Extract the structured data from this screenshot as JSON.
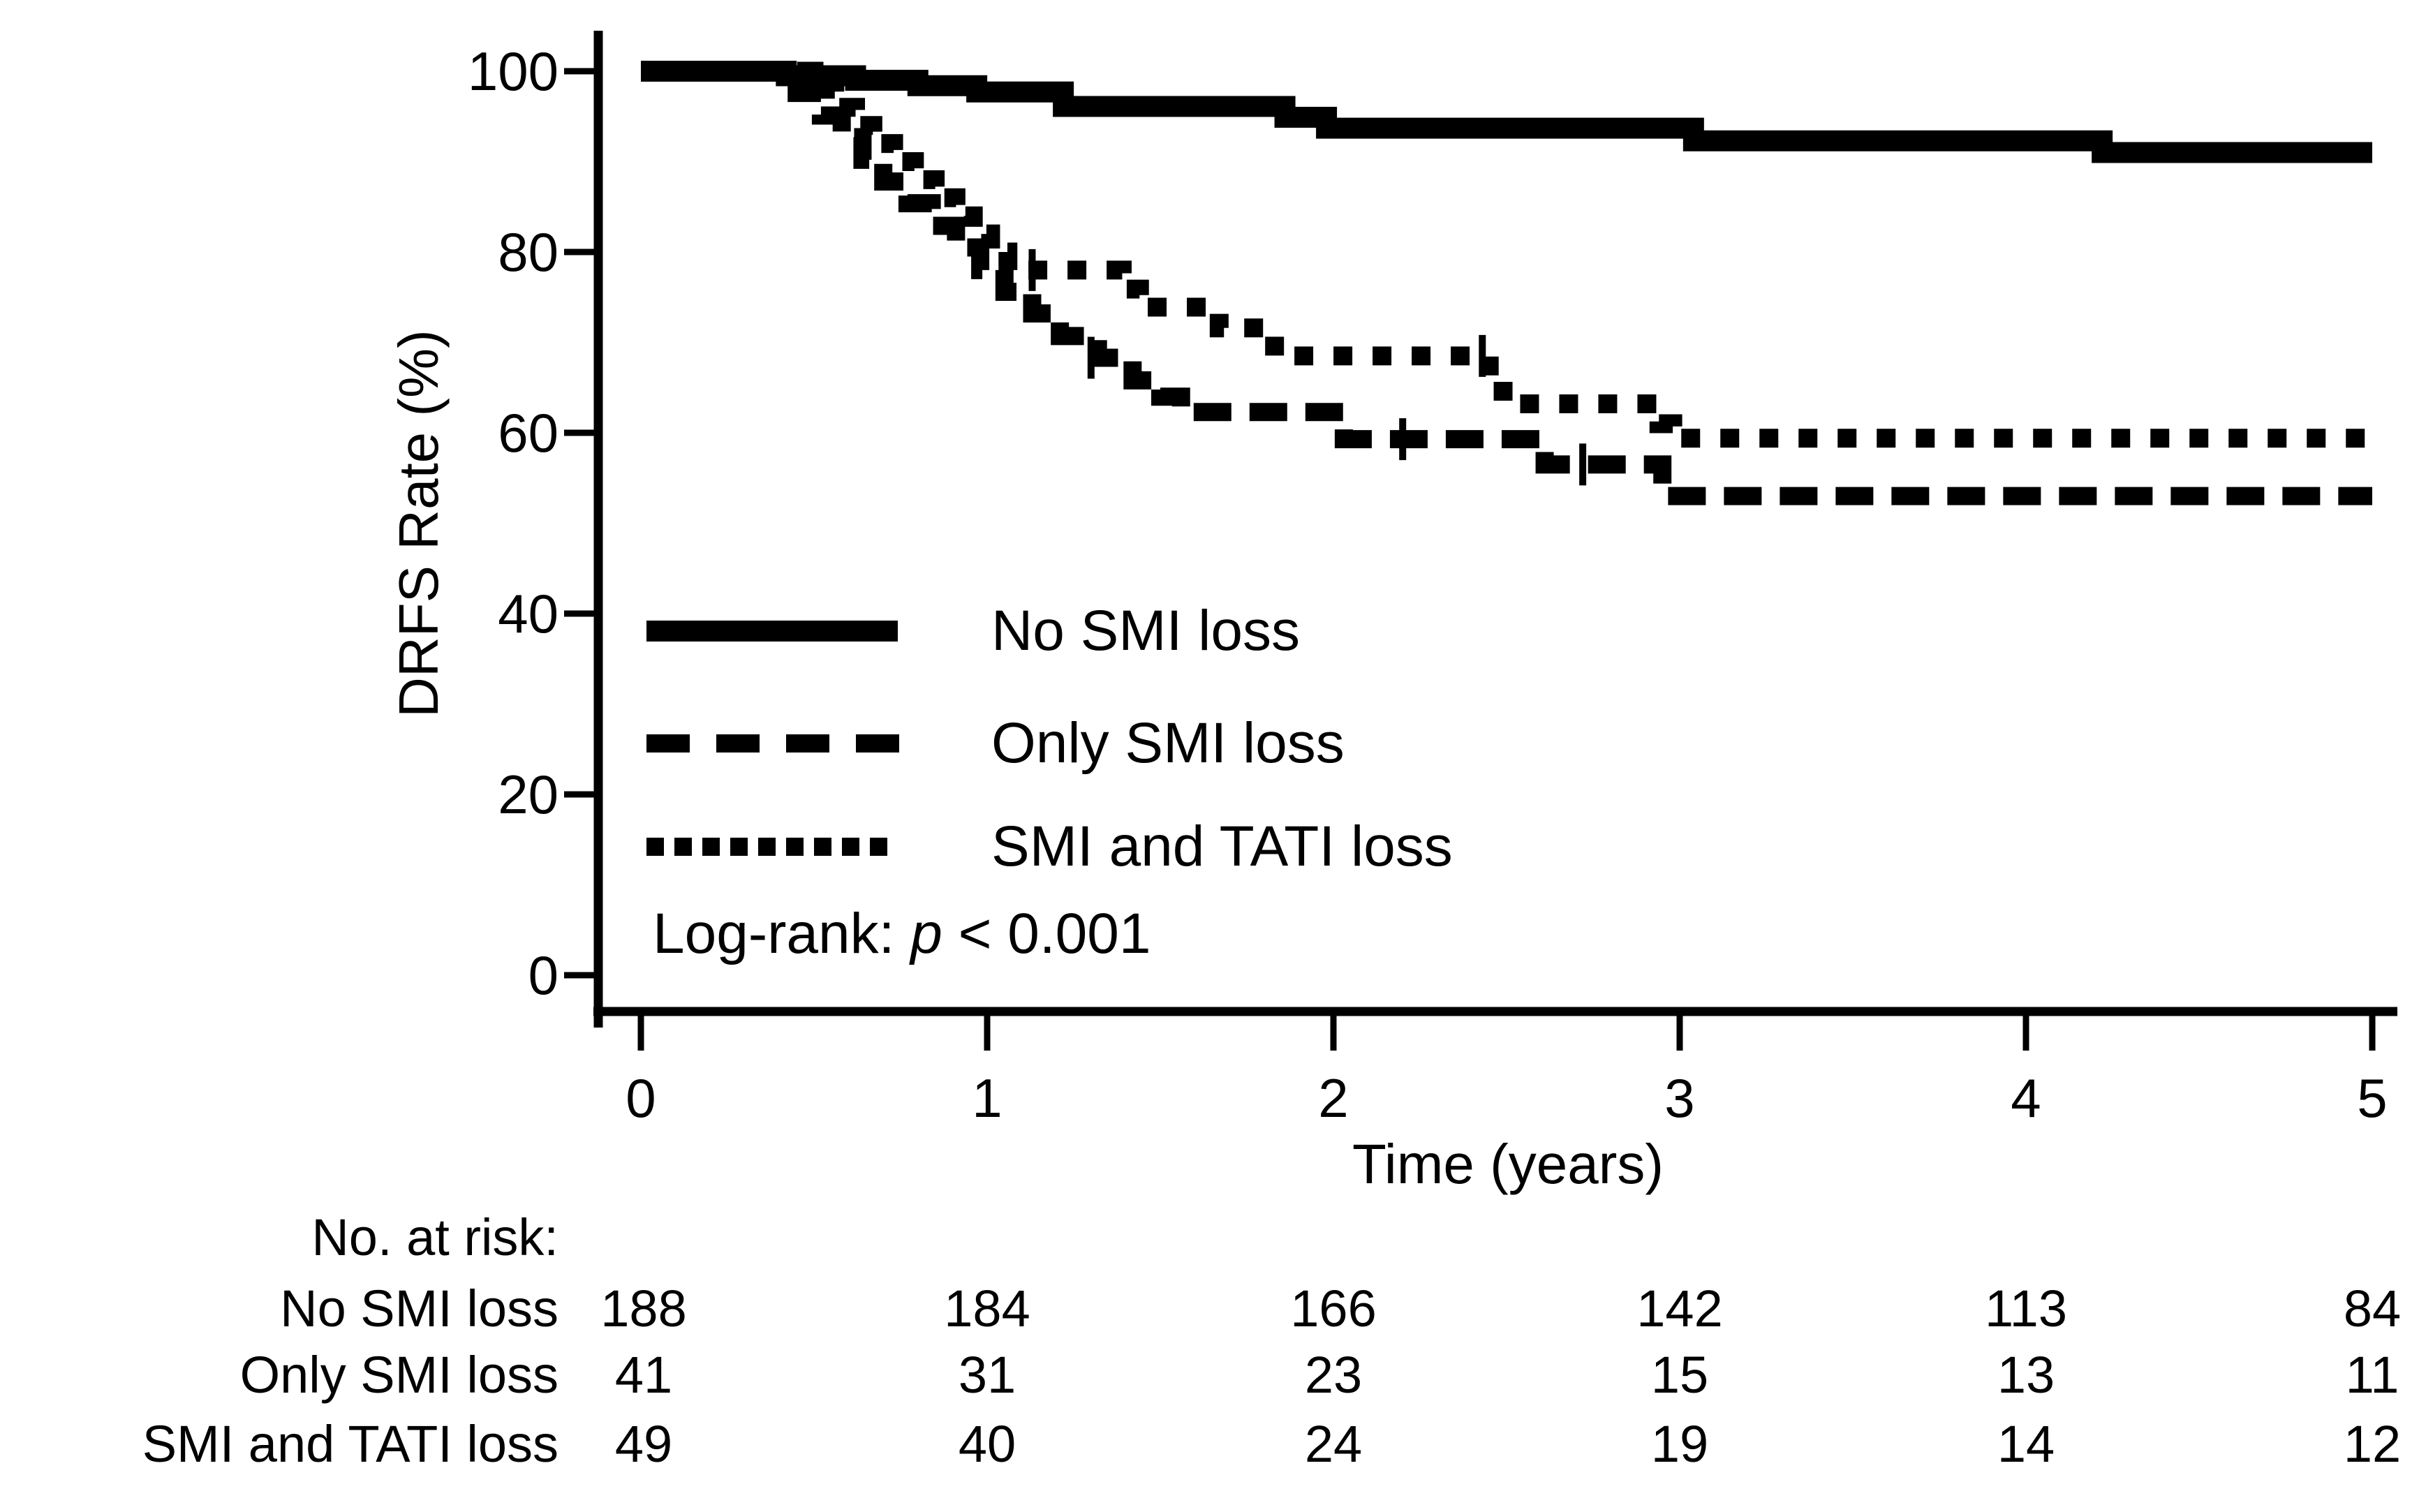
{
  "chart_data": {
    "type": "line",
    "subtype": "kaplan-meier-step-curves",
    "title": "",
    "xlabel": "Time (years)",
    "ylabel": "DRFS Rate (%)",
    "xlim": [
      0,
      5
    ],
    "ylim": [
      0,
      100
    ],
    "x_ticks": [
      0,
      1,
      2,
      3,
      4,
      5
    ],
    "y_ticks": [
      100,
      80,
      60,
      40,
      20,
      0
    ],
    "grid": false,
    "legend_position": "inside-lower-left",
    "annotation": {
      "prefix": "Log-rank: ",
      "p_symbol": "p",
      "suffix": " < 0.001"
    },
    "colors": {
      "line": "#000000",
      "background": "#ffffff"
    },
    "series": [
      {
        "name": "No SMI loss",
        "line_style": "solid",
        "steps": [
          [
            0,
            100
          ],
          [
            0.42,
            99.5
          ],
          [
            0.62,
            99.0
          ],
          [
            0.8,
            98.4
          ],
          [
            0.97,
            97.7
          ],
          [
            1.22,
            96.1
          ],
          [
            1.86,
            94.9
          ],
          [
            1.98,
            93.7
          ],
          [
            3.04,
            92.3
          ],
          [
            4.22,
            91.0
          ]
        ],
        "end_time": 5,
        "censors": []
      },
      {
        "name": "Only SMI loss",
        "line_style": "dashed",
        "steps": [
          [
            0,
            100
          ],
          [
            0.45,
            97.6
          ],
          [
            0.52,
            95.1
          ],
          [
            0.58,
            92.7
          ],
          [
            0.64,
            90.2
          ],
          [
            0.7,
            87.8
          ],
          [
            0.77,
            85.4
          ],
          [
            0.84,
            82.9
          ],
          [
            0.91,
            80.5
          ],
          [
            0.98,
            78.0
          ],
          [
            1.05,
            75.6
          ],
          [
            1.13,
            73.2
          ],
          [
            1.21,
            70.7
          ],
          [
            1.32,
            68.3
          ],
          [
            1.42,
            65.8
          ],
          [
            1.5,
            64.0
          ],
          [
            1.56,
            62.3
          ],
          [
            2.03,
            59.3
          ],
          [
            2.61,
            56.5
          ],
          [
            2.95,
            53.0
          ]
        ],
        "end_time": 5,
        "censors": [
          [
            1.3,
            68.3
          ],
          [
            2.2,
            59.3
          ],
          [
            2.72,
            56.5
          ]
        ]
      },
      {
        "name": "SMI and TATI loss",
        "line_style": "dotted",
        "steps": [
          [
            0,
            100
          ],
          [
            0.5,
            98.0
          ],
          [
            0.56,
            96.0
          ],
          [
            0.62,
            94.0
          ],
          [
            0.67,
            92.0
          ],
          [
            0.73,
            90.0
          ],
          [
            0.79,
            88.0
          ],
          [
            0.85,
            86.0
          ],
          [
            0.91,
            84.0
          ],
          [
            0.96,
            82.0
          ],
          [
            1.01,
            80.0
          ],
          [
            1.06,
            78.0
          ],
          [
            1.39,
            75.9
          ],
          [
            1.44,
            73.9
          ],
          [
            1.67,
            71.6
          ],
          [
            1.83,
            68.5
          ],
          [
            2.45,
            65.8
          ],
          [
            2.49,
            63.2
          ],
          [
            2.94,
            61.0
          ],
          [
            2.98,
            59.4
          ]
        ],
        "end_time": 5,
        "censors": [
          [
            1.13,
            78.0
          ],
          [
            2.43,
            68.5
          ]
        ]
      }
    ],
    "risk_table": {
      "title": "No. at risk:",
      "times": [
        0,
        1,
        2,
        3,
        4,
        5
      ],
      "rows": [
        {
          "label": "No SMI loss",
          "counts": [
            188,
            184,
            166,
            142,
            113,
            84
          ]
        },
        {
          "label": "Only SMI loss",
          "counts": [
            41,
            31,
            23,
            15,
            13,
            11
          ]
        },
        {
          "label": "SMI and TATI loss",
          "counts": [
            49,
            40,
            24,
            19,
            14,
            12
          ]
        }
      ]
    }
  }
}
